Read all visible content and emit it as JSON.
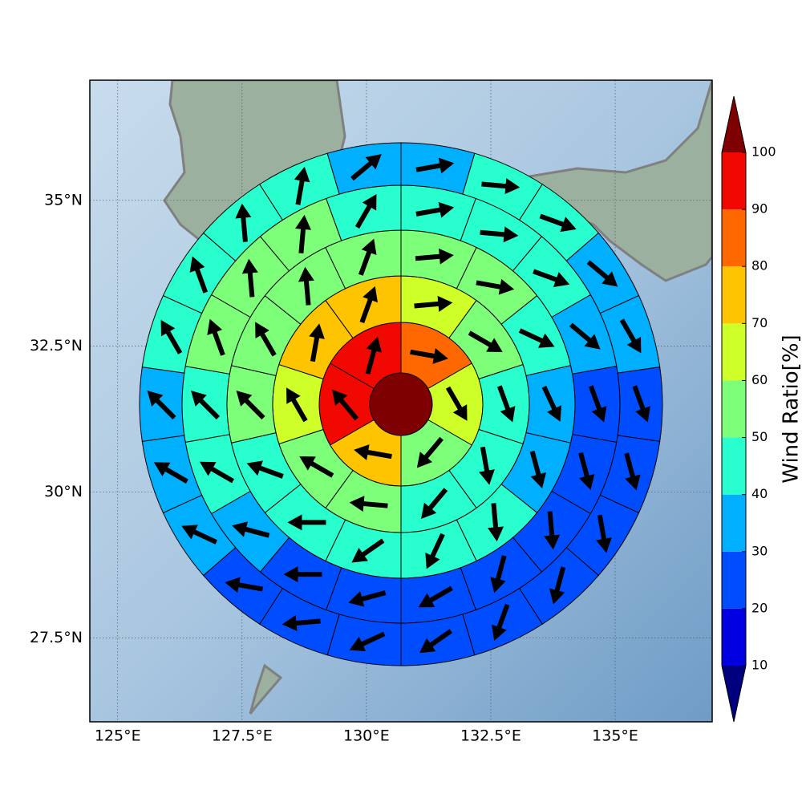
{
  "chart_data": {
    "type": "polar_sector",
    "xlim": [
      124.44,
      136.95
    ],
    "ylim": [
      26.06,
      37.06
    ],
    "xticks": [
      {
        "value": 125,
        "label": "125°E"
      },
      {
        "value": 127.5,
        "label": "127.5°E"
      },
      {
        "value": 130,
        "label": "130°E"
      },
      {
        "value": 132.5,
        "label": "132.5°E"
      },
      {
        "value": 135,
        "label": "135°E"
      }
    ],
    "yticks": [
      {
        "value": 27.5,
        "label": "27.5°N"
      },
      {
        "value": 30,
        "label": "30°N"
      },
      {
        "value": 32.5,
        "label": "32.5°N"
      },
      {
        "value": 35,
        "label": "35°N"
      }
    ],
    "grid": true,
    "center_value": 105,
    "rings": [
      {
        "values": [
          85,
          65,
          55,
          75,
          95,
          95
        ],
        "directions": [
          100,
          150,
          220,
          280,
          320,
          15
        ]
      },
      {
        "values": [
          65,
          55,
          45,
          45,
          45,
          55,
          55,
          65,
          75,
          75
        ],
        "directions": [
          85,
          120,
          160,
          170,
          220,
          275,
          300,
          330,
          10,
          20
        ]
      },
      {
        "values": [
          55,
          55,
          45,
          35,
          35,
          45,
          45,
          45,
          45,
          45,
          55,
          55,
          55,
          55
        ],
        "directions": [
          85,
          100,
          115,
          155,
          165,
          175,
          205,
          235,
          270,
          290,
          315,
          330,
          355,
          20
        ]
      },
      {
        "values": [
          45,
          45,
          45,
          35,
          25,
          25,
          25,
          25,
          25,
          25,
          25,
          35,
          45,
          45,
          55,
          55,
          55,
          45
        ],
        "directions": [
          80,
          95,
          110,
          130,
          160,
          165,
          175,
          195,
          240,
          255,
          270,
          285,
          300,
          315,
          340,
          355,
          5,
          30
        ]
      },
      {
        "values": [
          35,
          45,
          45,
          35,
          35,
          25,
          25,
          25,
          25,
          25,
          25,
          25,
          25,
          25,
          35,
          35,
          35,
          45,
          45,
          45,
          45,
          35
        ],
        "directions": [
          80,
          95,
          110,
          130,
          150,
          160,
          165,
          170,
          195,
          200,
          235,
          245,
          265,
          280,
          295,
          300,
          315,
          330,
          340,
          355,
          10,
          50
        ]
      }
    ],
    "colorbar": {
      "label": "Wind Ratio[%]",
      "ticks": [
        10,
        20,
        30,
        40,
        50,
        60,
        70,
        80,
        90,
        100
      ],
      "colors": [
        "#00007f",
        "#0000e0",
        "#004cff",
        "#00b0ff",
        "#29ffce",
        "#7dff7a",
        "#ceff29",
        "#ffc400",
        "#ff6800",
        "#f10800",
        "#7f0000"
      ]
    }
  }
}
